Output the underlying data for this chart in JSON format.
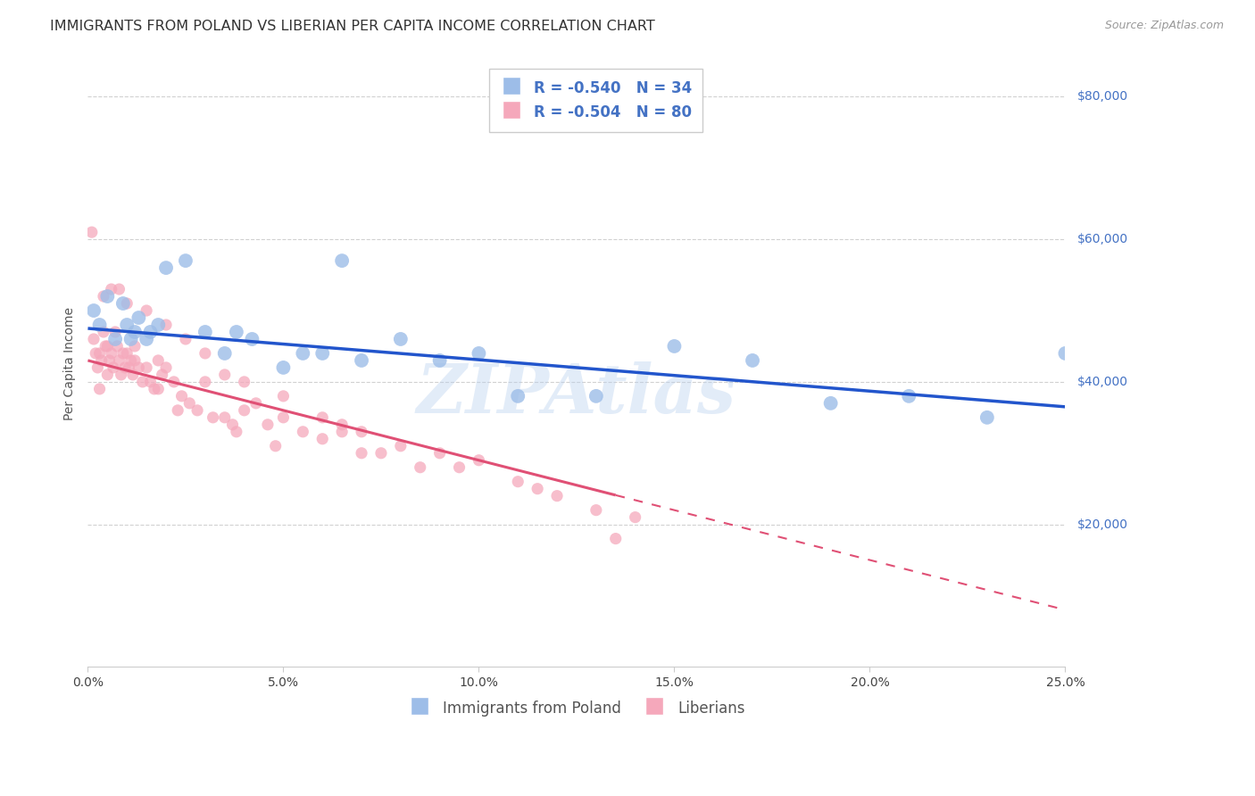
{
  "title": "IMMIGRANTS FROM POLAND VS LIBERIAN PER CAPITA INCOME CORRELATION CHART",
  "source": "Source: ZipAtlas.com",
  "ylabel": "Per Capita Income",
  "xlabel_ticks": [
    "0.0%",
    "5.0%",
    "10.0%",
    "15.0%",
    "20.0%",
    "25.0%"
  ],
  "xlabel_vals": [
    0.0,
    5.0,
    10.0,
    15.0,
    20.0,
    25.0
  ],
  "ylabel_ticks": [
    "$80,000",
    "$60,000",
    "$40,000",
    "$20,000"
  ],
  "ylabel_vals": [
    80000,
    60000,
    40000,
    20000
  ],
  "xlim": [
    0.0,
    25.0
  ],
  "ylim": [
    0,
    85000
  ],
  "poland_R": -0.54,
  "poland_N": 34,
  "liberian_R": -0.504,
  "liberian_N": 80,
  "poland_color": "#9dbde8",
  "liberian_color": "#f5a8bb",
  "poland_line_color": "#2255cc",
  "liberian_line_color": "#e05075",
  "background_color": "#ffffff",
  "watermark": "ZIPAtlas",
  "watermark_color": "#b8d0ee",
  "legend_color_blue": "#9dbde8",
  "legend_color_pink": "#f5a8bb",
  "poland_line_x0": 0.0,
  "poland_line_y0": 47500,
  "poland_line_x1": 25.0,
  "poland_line_y1": 36500,
  "liberian_line_x0": 0.0,
  "liberian_line_y0": 43000,
  "liberian_line_x1": 25.0,
  "liberian_line_y1": 8000,
  "liberian_solid_end": 13.5,
  "poland_scatter_x": [
    0.15,
    0.3,
    0.5,
    0.7,
    0.9,
    1.0,
    1.1,
    1.2,
    1.3,
    1.5,
    1.6,
    1.8,
    2.0,
    2.5,
    3.0,
    3.5,
    3.8,
    4.2,
    5.0,
    5.5,
    6.0,
    7.0,
    8.0,
    9.0,
    10.0,
    11.0,
    13.0,
    15.0,
    17.0,
    19.0,
    21.0,
    23.0,
    25.0,
    6.5
  ],
  "poland_scatter_y": [
    50000,
    48000,
    52000,
    46000,
    51000,
    48000,
    46000,
    47000,
    49000,
    46000,
    47000,
    48000,
    56000,
    57000,
    47000,
    44000,
    47000,
    46000,
    42000,
    44000,
    44000,
    43000,
    46000,
    43000,
    44000,
    38000,
    38000,
    45000,
    43000,
    37000,
    38000,
    35000,
    44000,
    57000
  ],
  "liberian_scatter_x": [
    0.1,
    0.15,
    0.2,
    0.25,
    0.3,
    0.35,
    0.4,
    0.45,
    0.5,
    0.55,
    0.6,
    0.65,
    0.7,
    0.75,
    0.8,
    0.85,
    0.9,
    0.95,
    1.0,
    1.05,
    1.1,
    1.15,
    1.2,
    1.3,
    1.4,
    1.5,
    1.6,
    1.7,
    1.8,
    1.9,
    2.0,
    2.2,
    2.4,
    2.6,
    2.8,
    3.0,
    3.2,
    3.5,
    3.8,
    4.0,
    4.3,
    4.6,
    5.0,
    5.5,
    6.0,
    6.5,
    7.0,
    7.5,
    8.0,
    8.5,
    9.0,
    9.5,
    10.0,
    11.0,
    12.0,
    13.0,
    14.0,
    0.4,
    0.6,
    0.8,
    1.0,
    1.5,
    2.0,
    2.5,
    3.0,
    3.5,
    4.0,
    5.0,
    6.0,
    7.0,
    0.3,
    0.5,
    1.2,
    1.8,
    2.3,
    3.7,
    4.8,
    6.5,
    11.5,
    13.5
  ],
  "liberian_scatter_y": [
    61000,
    46000,
    44000,
    42000,
    44000,
    43000,
    47000,
    45000,
    45000,
    43000,
    44000,
    42000,
    47000,
    45000,
    43000,
    41000,
    44000,
    42000,
    44000,
    42000,
    43000,
    41000,
    45000,
    42000,
    40000,
    42000,
    40000,
    39000,
    43000,
    41000,
    42000,
    40000,
    38000,
    37000,
    36000,
    40000,
    35000,
    35000,
    33000,
    36000,
    37000,
    34000,
    35000,
    33000,
    32000,
    34000,
    30000,
    30000,
    31000,
    28000,
    30000,
    28000,
    29000,
    26000,
    24000,
    22000,
    21000,
    52000,
    53000,
    53000,
    51000,
    50000,
    48000,
    46000,
    44000,
    41000,
    40000,
    38000,
    35000,
    33000,
    39000,
    41000,
    43000,
    39000,
    36000,
    34000,
    31000,
    33000,
    25000,
    18000
  ],
  "title_fontsize": 11.5,
  "axis_label_fontsize": 10,
  "tick_fontsize": 10,
  "legend_fontsize": 12
}
